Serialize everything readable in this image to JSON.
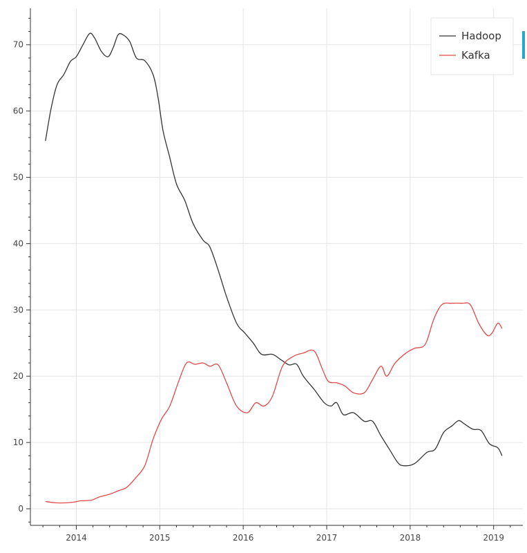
{
  "chart_data": {
    "type": "line",
    "title": "",
    "xlabel": "",
    "ylabel": "",
    "xlim": [
      2013.45,
      2019.35
    ],
    "ylim": [
      -2.5,
      75.5
    ],
    "x_ticks": [
      2014,
      2015,
      2016,
      2017,
      2018,
      2019
    ],
    "x_tick_labels": [
      "2014",
      "2015",
      "2016",
      "2017",
      "2018",
      "2019"
    ],
    "y_ticks": [
      0,
      10,
      20,
      30,
      40,
      50,
      60,
      70
    ],
    "y_tick_labels": [
      "0",
      "10",
      "20",
      "30",
      "40",
      "50",
      "60",
      "70"
    ],
    "grid": true,
    "legend_position": "top-right",
    "series": [
      {
        "name": "Hadoop",
        "color": "#333333",
        "points": [
          [
            2013.63,
            55.5
          ],
          [
            2013.7,
            60.5
          ],
          [
            2013.77,
            64.0
          ],
          [
            2013.85,
            65.5
          ],
          [
            2013.93,
            67.5
          ],
          [
            2014.0,
            68.2
          ],
          [
            2014.08,
            70.0
          ],
          [
            2014.16,
            71.7
          ],
          [
            2014.22,
            71.0
          ],
          [
            2014.3,
            69.0
          ],
          [
            2014.38,
            68.2
          ],
          [
            2014.44,
            69.5
          ],
          [
            2014.5,
            71.5
          ],
          [
            2014.56,
            71.5
          ],
          [
            2014.64,
            70.5
          ],
          [
            2014.72,
            68.0
          ],
          [
            2014.82,
            67.6
          ],
          [
            2014.92,
            65.5
          ],
          [
            2014.98,
            62.0
          ],
          [
            2015.04,
            57.0
          ],
          [
            2015.12,
            53.0
          ],
          [
            2015.2,
            49.0
          ],
          [
            2015.3,
            46.5
          ],
          [
            2015.4,
            43.0
          ],
          [
            2015.52,
            40.5
          ],
          [
            2015.6,
            39.5
          ],
          [
            2015.7,
            36.0
          ],
          [
            2015.8,
            32.0
          ],
          [
            2015.92,
            28.0
          ],
          [
            2016.02,
            26.5
          ],
          [
            2016.12,
            25.0
          ],
          [
            2016.22,
            23.3
          ],
          [
            2016.35,
            23.3
          ],
          [
            2016.45,
            22.5
          ],
          [
            2016.55,
            21.7
          ],
          [
            2016.64,
            21.8
          ],
          [
            2016.72,
            20.0
          ],
          [
            2016.85,
            18.0
          ],
          [
            2016.97,
            16.0
          ],
          [
            2017.05,
            15.5
          ],
          [
            2017.12,
            16.0
          ],
          [
            2017.2,
            14.2
          ],
          [
            2017.32,
            14.5
          ],
          [
            2017.45,
            13.2
          ],
          [
            2017.55,
            13.2
          ],
          [
            2017.65,
            11.0
          ],
          [
            2017.75,
            9.0
          ],
          [
            2017.85,
            7.0
          ],
          [
            2017.92,
            6.5
          ],
          [
            2018.05,
            6.8
          ],
          [
            2018.2,
            8.5
          ],
          [
            2018.3,
            9.0
          ],
          [
            2018.4,
            11.5
          ],
          [
            2018.5,
            12.5
          ],
          [
            2018.58,
            13.3
          ],
          [
            2018.65,
            12.8
          ],
          [
            2018.75,
            12.0
          ],
          [
            2018.85,
            11.8
          ],
          [
            2018.95,
            9.8
          ],
          [
            2019.05,
            9.2
          ],
          [
            2019.1,
            8.0
          ]
        ]
      },
      {
        "name": "Kafka",
        "color": "#e04a4a",
        "points": [
          [
            2013.63,
            1.1
          ],
          [
            2013.75,
            0.9
          ],
          [
            2013.88,
            0.9
          ],
          [
            2013.97,
            1.0
          ],
          [
            2014.05,
            1.2
          ],
          [
            2014.18,
            1.3
          ],
          [
            2014.28,
            1.8
          ],
          [
            2014.4,
            2.2
          ],
          [
            2014.5,
            2.7
          ],
          [
            2014.6,
            3.2
          ],
          [
            2014.7,
            4.5
          ],
          [
            2014.82,
            6.5
          ],
          [
            2014.92,
            10.5
          ],
          [
            2015.02,
            13.5
          ],
          [
            2015.12,
            15.5
          ],
          [
            2015.22,
            19.0
          ],
          [
            2015.32,
            22.0
          ],
          [
            2015.42,
            21.8
          ],
          [
            2015.52,
            22.0
          ],
          [
            2015.6,
            21.5
          ],
          [
            2015.7,
            21.7
          ],
          [
            2015.8,
            19.0
          ],
          [
            2015.92,
            15.5
          ],
          [
            2016.05,
            14.5
          ],
          [
            2016.15,
            16.0
          ],
          [
            2016.25,
            15.5
          ],
          [
            2016.35,
            17.0
          ],
          [
            2016.47,
            21.5
          ],
          [
            2016.6,
            23.0
          ],
          [
            2016.72,
            23.5
          ],
          [
            2016.85,
            23.8
          ],
          [
            2016.95,
            21.0
          ],
          [
            2017.02,
            19.2
          ],
          [
            2017.12,
            19.0
          ],
          [
            2017.22,
            18.5
          ],
          [
            2017.32,
            17.5
          ],
          [
            2017.45,
            17.5
          ],
          [
            2017.55,
            19.5
          ],
          [
            2017.65,
            21.5
          ],
          [
            2017.72,
            20.0
          ],
          [
            2017.82,
            22.0
          ],
          [
            2017.95,
            23.5
          ],
          [
            2018.05,
            24.2
          ],
          [
            2018.18,
            24.8
          ],
          [
            2018.28,
            28.5
          ],
          [
            2018.38,
            30.8
          ],
          [
            2018.5,
            31.0
          ],
          [
            2018.62,
            31.0
          ],
          [
            2018.72,
            30.8
          ],
          [
            2018.82,
            28.0
          ],
          [
            2018.92,
            26.2
          ],
          [
            2018.98,
            26.5
          ],
          [
            2019.05,
            28.0
          ],
          [
            2019.1,
            27.2
          ]
        ]
      }
    ]
  }
}
